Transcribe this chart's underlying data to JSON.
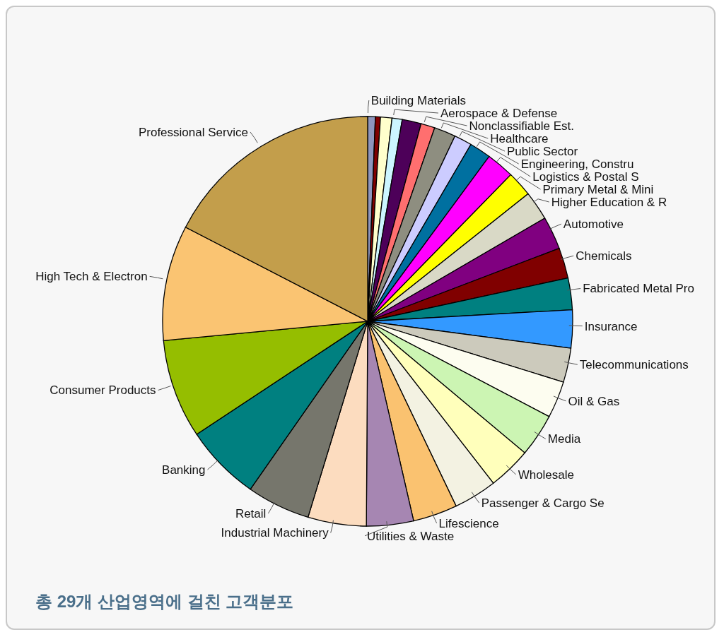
{
  "chart_data": {
    "type": "pie",
    "title": "총 29개 산업영역에 걸친 고객분포",
    "categories": [
      "Building Materials",
      null,
      null,
      "Aerospace & Defense",
      null,
      "Nonclassifiable Est.",
      "Healthcare",
      "Public Sector",
      "Engineering, Constru",
      "Logistics & Postal S",
      "Primary Metal & Mini",
      "Higher Education & R",
      "Automotive",
      "Chemicals",
      "Fabricated Metal Pro",
      "Insurance",
      "Telecommunications",
      "Oil & Gas",
      "Media",
      "Wholesale",
      "Passenger & Cargo Se",
      "Lifescience",
      "Utilities & Waste",
      "Industrial Machinery",
      "Retail",
      "Banking",
      "Consumer Products",
      "High Tech & Electron",
      "Professional Service"
    ],
    "values": [
      0.6,
      0.4,
      0.9,
      0.8,
      1.5,
      1.1,
      1.7,
      1.4,
      1.7,
      2.2,
      2.0,
      2.3,
      2.6,
      2.4,
      2.5,
      3.0,
      2.7,
      2.9,
      3.4,
      3.4,
      3.4,
      3.5,
      3.7,
      4.6,
      5.0,
      6.0,
      7.8,
      9.1,
      17.4
    ],
    "colors": [
      "#8e96bd",
      "#800000",
      "#ffffcc",
      "#ccf5ff",
      "#4d0059",
      "#ff6f6f",
      "#8e8e80",
      "#ccccff",
      "#0070a0",
      "#ff00ff",
      "#ffff00",
      "#d9d9c6",
      "#800080",
      "#800000",
      "#008080",
      "#3399ff",
      "#cccabc",
      "#fdfdf0",
      "#ccf5b3",
      "#ffffbb",
      "#f3f2e2",
      "#fac270",
      "#a686b2",
      "#fcdcbf",
      "#76766c",
      "#008080",
      "#95be00",
      "#fac472",
      "#c39e4b"
    ]
  }
}
